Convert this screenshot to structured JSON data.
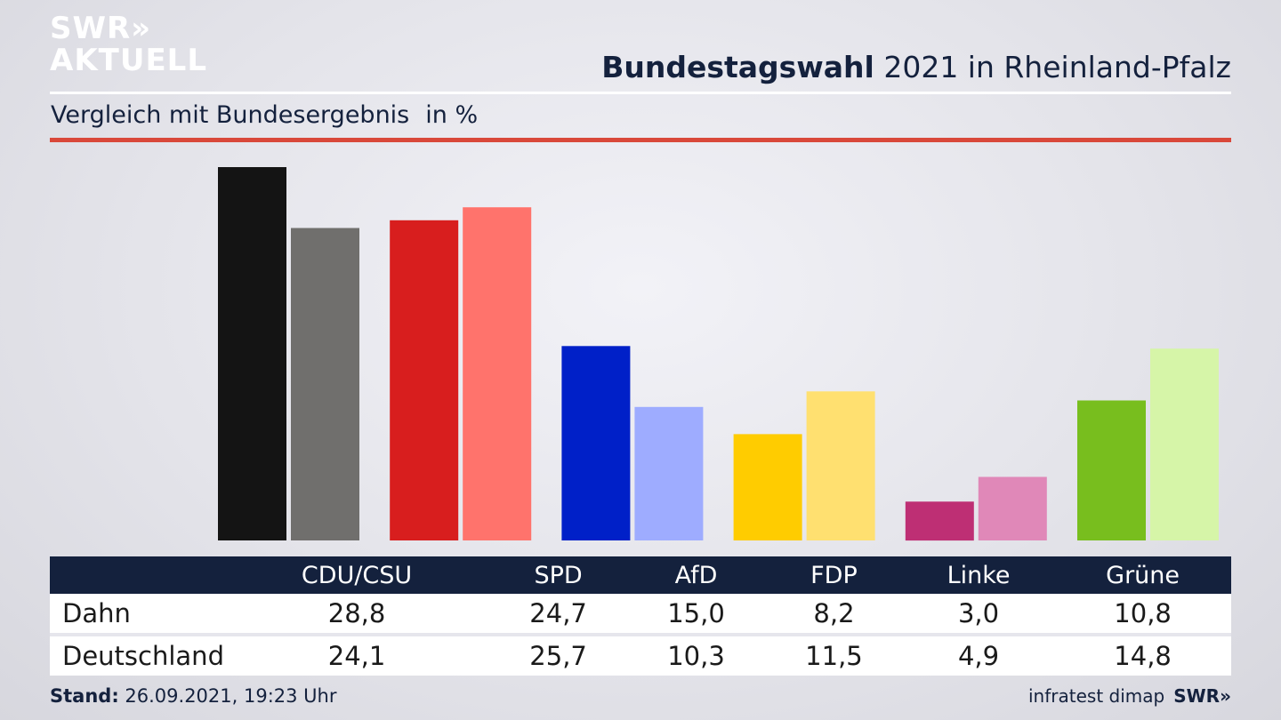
{
  "logo": {
    "line1": "SWR»",
    "line2": "AKTUELL"
  },
  "header": {
    "title_bold": "Bundestagswahl",
    "title_rest": " 2021 in Rheinland-Pfalz",
    "subtitle": "Vergleich mit Bundesergebnis",
    "unit": "in %"
  },
  "colors": {
    "primary": [
      "#141414",
      "#d81e1e",
      "#0020c8",
      "#ffcc00",
      "#be2f74",
      "#78be1e"
    ],
    "secondary": [
      "#706f6d",
      "#ff736c",
      "#9eacff",
      "#ffe070",
      "#e088b8",
      "#d6f5a8"
    ],
    "table_header": "#14213d",
    "accent_line": "#d9483a"
  },
  "chart_data": {
    "type": "bar",
    "categories": [
      "CDU/CSU",
      "SPD",
      "AfD",
      "FDP",
      "Linke",
      "Grüne"
    ],
    "series": [
      {
        "name": "Dahn",
        "values": [
          28.8,
          24.7,
          15.0,
          8.2,
          3.0,
          10.8
        ]
      },
      {
        "name": "Deutschland",
        "values": [
          24.1,
          25.7,
          10.3,
          11.5,
          4.9,
          14.8
        ]
      }
    ],
    "ylim": [
      0,
      28.8
    ],
    "grid": false,
    "legend": "table-below"
  },
  "table": {
    "rows": [
      {
        "label": "Dahn",
        "values": [
          "28,8",
          "24,7",
          "15,0",
          "8,2",
          "3,0",
          "10,8"
        ]
      },
      {
        "label": "Deutschland",
        "values": [
          "24,1",
          "25,7",
          "10,3",
          "11,5",
          "4,9",
          "14,8"
        ]
      }
    ]
  },
  "footer": {
    "stand_label": "Stand:",
    "stand_value": " 26.09.2021, 19:23 Uhr",
    "source": "infratest dimap",
    "brand": "SWR»"
  }
}
